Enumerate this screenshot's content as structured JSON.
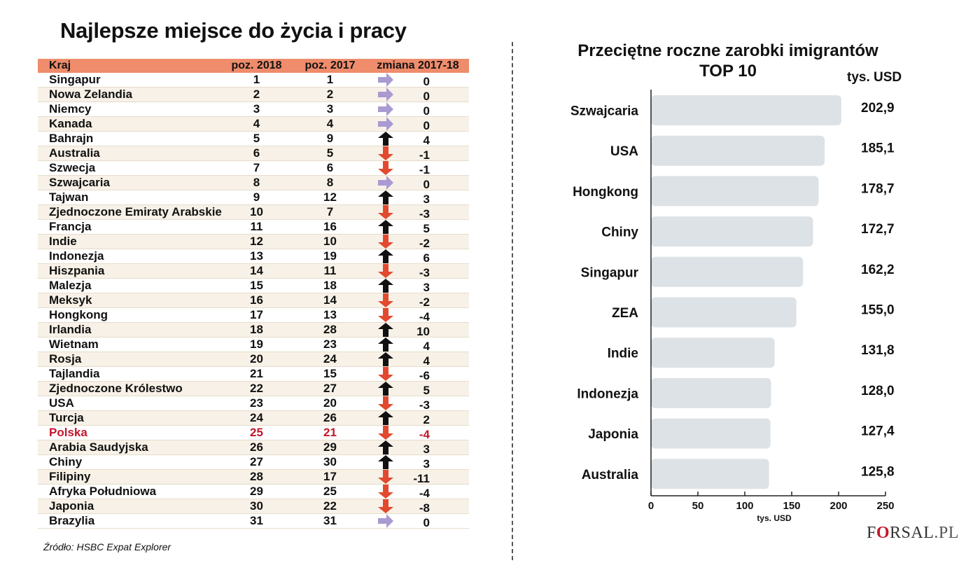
{
  "left_title": "Najlepsze miejsce do życia i pracy",
  "table": {
    "headers": [
      "Kraj",
      "poz. 2018",
      "poz. 2017",
      "zmiana 2017-18"
    ],
    "rows": [
      {
        "country": "Singapur",
        "pos2018": "1",
        "pos2017": "1",
        "change": "0",
        "dir": "same"
      },
      {
        "country": "Nowa Zelandia",
        "pos2018": "2",
        "pos2017": "2",
        "change": "0",
        "dir": "same"
      },
      {
        "country": "Niemcy",
        "pos2018": "3",
        "pos2017": "3",
        "change": "0",
        "dir": "same"
      },
      {
        "country": "Kanada",
        "pos2018": "4",
        "pos2017": "4",
        "change": "0",
        "dir": "same"
      },
      {
        "country": "Bahrajn",
        "pos2018": "5",
        "pos2017": "9",
        "change": "4",
        "dir": "up"
      },
      {
        "country": "Australia",
        "pos2018": "6",
        "pos2017": "5",
        "change": "-1",
        "dir": "down"
      },
      {
        "country": "Szwecja",
        "pos2018": "7",
        "pos2017": "6",
        "change": "-1",
        "dir": "down"
      },
      {
        "country": "Szwajcaria",
        "pos2018": "8",
        "pos2017": "8",
        "change": "0",
        "dir": "same"
      },
      {
        "country": "Tajwan",
        "pos2018": "9",
        "pos2017": "12",
        "change": "3",
        "dir": "up"
      },
      {
        "country": "Zjednoczone Emiraty Arabskie",
        "pos2018": "10",
        "pos2017": "7",
        "change": "-3",
        "dir": "down"
      },
      {
        "country": "Francja",
        "pos2018": "11",
        "pos2017": "16",
        "change": "5",
        "dir": "up"
      },
      {
        "country": "Indie",
        "pos2018": "12",
        "pos2017": "10",
        "change": "-2",
        "dir": "down"
      },
      {
        "country": "Indonezja",
        "pos2018": "13",
        "pos2017": "19",
        "change": "6",
        "dir": "up"
      },
      {
        "country": "Hiszpania",
        "pos2018": "14",
        "pos2017": "11",
        "change": "-3",
        "dir": "down"
      },
      {
        "country": "Malezja",
        "pos2018": "15",
        "pos2017": "18",
        "change": "3",
        "dir": "up"
      },
      {
        "country": "Meksyk",
        "pos2018": "16",
        "pos2017": "14",
        "change": "-2",
        "dir": "down"
      },
      {
        "country": "Hongkong",
        "pos2018": "17",
        "pos2017": "13",
        "change": "-4",
        "dir": "down"
      },
      {
        "country": "Irlandia",
        "pos2018": "18",
        "pos2017": "28",
        "change": "10",
        "dir": "up"
      },
      {
        "country": "Wietnam",
        "pos2018": "19",
        "pos2017": "23",
        "change": "4",
        "dir": "up"
      },
      {
        "country": "Rosja",
        "pos2018": "20",
        "pos2017": "24",
        "change": "4",
        "dir": "up"
      },
      {
        "country": "Tajlandia",
        "pos2018": "21",
        "pos2017": "15",
        "change": "-6",
        "dir": "down"
      },
      {
        "country": "Zjednoczone Królestwo",
        "pos2018": "22",
        "pos2017": "27",
        "change": "5",
        "dir": "up"
      },
      {
        "country": "USA",
        "pos2018": "23",
        "pos2017": "20",
        "change": "-3",
        "dir": "down"
      },
      {
        "country": "Turcja",
        "pos2018": "24",
        "pos2017": "26",
        "change": "2",
        "dir": "up"
      },
      {
        "country": "Polska",
        "pos2018": "25",
        "pos2017": "21",
        "change": "-4",
        "dir": "down",
        "highlight": true
      },
      {
        "country": "Arabia Saudyjska",
        "pos2018": "26",
        "pos2017": "29",
        "change": "3",
        "dir": "up"
      },
      {
        "country": "Chiny",
        "pos2018": "27",
        "pos2017": "30",
        "change": "3",
        "dir": "up"
      },
      {
        "country": "Filipiny",
        "pos2018": "28",
        "pos2017": "17",
        "change": "-11",
        "dir": "down"
      },
      {
        "country": "Afryka Południowa",
        "pos2018": "29",
        "pos2017": "25",
        "change": "-4",
        "dir": "down"
      },
      {
        "country": "Japonia",
        "pos2018": "30",
        "pos2017": "22",
        "change": "-8",
        "dir": "down"
      },
      {
        "country": "Brazylia",
        "pos2018": "31",
        "pos2017": "31",
        "change": "0",
        "dir": "same"
      }
    ]
  },
  "source": "Źródło:  HSBC Expat Explorer",
  "right_title_line1": "Przeciętne roczne zarobki imigrantów",
  "right_title_line2": "TOP 10",
  "unit_top": "tys. USD",
  "logo": {
    "part1": "F",
    "part2": "O",
    "part3": "RSAL",
    "part4": ".PL"
  },
  "colors": {
    "header_bg": "#ee8c6c",
    "row_alt": "#f7f1e7",
    "bar": "#dde2e6",
    "highlight": "#c3172b",
    "arrow_same": "#a99bd1",
    "arrow_up": "#111111",
    "arrow_down": "#e2492f"
  },
  "chart_data": {
    "type": "bar",
    "orientation": "horizontal",
    "title": "Przeciętne roczne zarobki imigrantów TOP 10",
    "categories": [
      "Szwajcaria",
      "USA",
      "Hongkong",
      "Chiny",
      "Singapur",
      "ZEA",
      "Indie",
      "Indonezja",
      "Japonia",
      "Australia"
    ],
    "values": [
      202.9,
      185.1,
      178.7,
      172.7,
      162.2,
      155.0,
      131.8,
      128.0,
      127.4,
      125.8
    ],
    "value_labels": [
      "202,9",
      "185,1",
      "178,7",
      "172,7",
      "162,2",
      "155,0",
      "131,8",
      "128,0",
      "127,4",
      "125,8"
    ],
    "xlabel": "tys. USD",
    "ylabel": "",
    "xlim": [
      0,
      250
    ],
    "xticks": [
      "0",
      "50",
      "100",
      "150",
      "200",
      "250"
    ],
    "grid": false,
    "legend": "none"
  }
}
